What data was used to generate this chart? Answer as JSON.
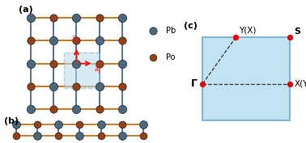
{
  "panel_a_label": "(a)",
  "panel_b_label": "(b)",
  "panel_c_label": "(c)",
  "pb_color": "#4a6880",
  "po_color": "#964014",
  "bond_color_v": "#5a7a9a",
  "bond_color_h": "#c8802a",
  "grid_n": 5,
  "cell_highlight_color": "#b8dcea",
  "cell_highlight_alpha": 0.55,
  "arrow_color": "#ee1111",
  "bz_fill_color": "#a8d8ee",
  "bz_fill_alpha": 0.7,
  "bz_edge_color": "#5a9ec8",
  "dashed_line_color": "#333333",
  "point_color": "#ee0000",
  "gamma_label": "Γ",
  "x_label": "X(Y)",
  "y_label": "Y(X)",
  "s_label": "S",
  "pb_legend": "Pb",
  "po_legend": "Po"
}
